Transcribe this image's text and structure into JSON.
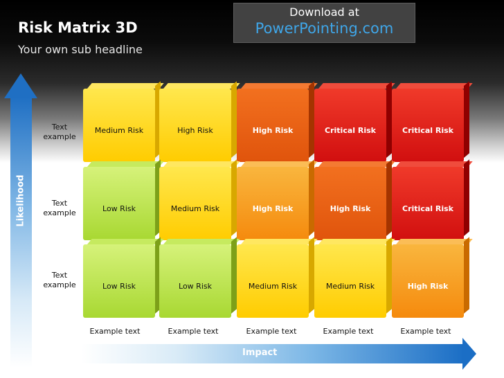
{
  "header": {
    "title": "Risk Matrix 3D",
    "subtitle": "Your own sub headline"
  },
  "download": {
    "line1": "Download at",
    "line2": "PowerPointing.com"
  },
  "axes": {
    "likelihood": "Likelihood",
    "impact": "Impact"
  },
  "rows": [
    {
      "label": "Text\nexample",
      "cells": [
        "Medium Risk",
        "High Risk",
        "High Risk",
        "Critical Risk",
        "Critical Risk"
      ]
    },
    {
      "label": "Text\nexample",
      "cells": [
        "Low Risk",
        "Medium Risk",
        "High Risk",
        "High Risk",
        "Critical Risk"
      ]
    },
    {
      "label": "Text\nexample",
      "cells": [
        "Low Risk",
        "Low Risk",
        "Medium Risk",
        "Medium Risk",
        "High Risk"
      ]
    }
  ],
  "columns": [
    "Example text",
    "Example text",
    "Example text",
    "Example text",
    "Example text"
  ],
  "colors": {
    "low": "#a8d832",
    "medium": "#ffcc00",
    "high": "#f58a0d",
    "high_dark": "#e0540c",
    "critical": "#d10f0f",
    "arrow": "#1f6fc3"
  }
}
